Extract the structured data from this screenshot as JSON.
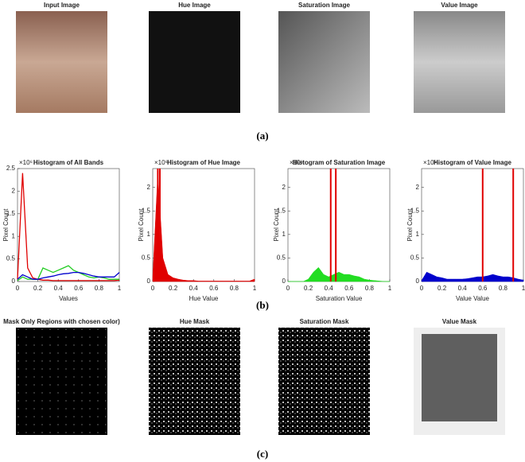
{
  "images_a": [
    "Input Image",
    "Hue Image",
    "Saturation Image",
    "Value Image"
  ],
  "images_c": [
    "Mask Only Regions with chosen color)",
    "Hue Mask",
    "Saturation Mask",
    "Value Mask"
  ],
  "panel_labels": [
    "(a)",
    "(b)",
    "(c)"
  ],
  "chart_data": [
    {
      "type": "line",
      "title": "Histogram of All Bands",
      "xlabel": "Values",
      "ylabel": "Pixel Count",
      "yexponent": "×10⁶",
      "x": [
        0,
        0.05,
        0.1,
        0.15,
        0.2,
        0.25,
        0.3,
        0.35,
        0.4,
        0.45,
        0.5,
        0.55,
        0.6,
        0.65,
        0.7,
        0.75,
        0.8,
        0.85,
        0.9,
        0.95,
        1
      ],
      "series": [
        {
          "name": "Red",
          "color": "#e00000",
          "values": [
            0.05,
            2.4,
            0.3,
            0.08,
            0.05,
            0.03,
            0.03,
            0.02,
            0.02,
            0.02,
            0.02,
            0.02,
            0.02,
            0.02,
            0.02,
            0.02,
            0.02,
            0.02,
            0.02,
            0.02,
            0.03
          ]
        },
        {
          "name": "Green",
          "color": "#22cc22",
          "values": [
            0.02,
            0.1,
            0.05,
            0.05,
            0.05,
            0.3,
            0.25,
            0.2,
            0.25,
            0.3,
            0.35,
            0.25,
            0.2,
            0.15,
            0.1,
            0.08,
            0.1,
            0.08,
            0.05,
            0.05,
            0.05
          ]
        },
        {
          "name": "Blue",
          "color": "#0000cc",
          "values": [
            0.05,
            0.15,
            0.1,
            0.05,
            0.05,
            0.08,
            0.1,
            0.12,
            0.15,
            0.17,
            0.18,
            0.2,
            0.2,
            0.18,
            0.15,
            0.12,
            0.1,
            0.1,
            0.1,
            0.1,
            0.2
          ]
        }
      ],
      "xlim": [
        0,
        1
      ],
      "ylim": [
        0,
        2.5
      ],
      "xticks": [
        0,
        0.2,
        0.4,
        0.6,
        0.8,
        1
      ],
      "yticks": [
        0,
        0.5,
        1,
        1.5,
        2,
        2.5
      ]
    },
    {
      "type": "area",
      "title": "Histogram of Hue Image",
      "xlabel": "Hue Value",
      "ylabel": "Pixel Count",
      "yexponent": "×10⁶",
      "x": [
        0,
        0.05,
        0.1,
        0.15,
        0.2,
        0.25,
        0.3,
        0.35,
        0.4,
        0.45,
        0.5,
        0.55,
        0.6,
        0.65,
        0.7,
        0.75,
        0.8,
        0.85,
        0.9,
        0.95,
        1
      ],
      "series": [
        {
          "name": "Hue",
          "color": "#e00000",
          "values": [
            0.1,
            2.3,
            0.5,
            0.15,
            0.08,
            0.05,
            0.03,
            0.02,
            0.02,
            0.01,
            0.01,
            0.01,
            0.01,
            0.01,
            0.01,
            0.01,
            0.01,
            0.01,
            0.01,
            0.01,
            0.05
          ]
        }
      ],
      "thresholds": [
        0.05,
        0.07
      ],
      "threshold_color": "#e00000",
      "xlim": [
        0,
        1
      ],
      "ylim": [
        0,
        2.4
      ],
      "xticks": [
        0,
        0.2,
        0.4,
        0.6,
        0.8,
        1
      ],
      "yticks": [
        0,
        0.5,
        1,
        1.5,
        2
      ]
    },
    {
      "type": "area",
      "title": "Histogram of Saturation Image",
      "xlabel": "Saturation Value",
      "ylabel": "Pixel Count",
      "yexponent": "×10⁶",
      "x": [
        0,
        0.05,
        0.1,
        0.15,
        0.2,
        0.25,
        0.3,
        0.35,
        0.4,
        0.45,
        0.5,
        0.55,
        0.6,
        0.65,
        0.7,
        0.75,
        0.8,
        0.85,
        0.9,
        0.95,
        1
      ],
      "series": [
        {
          "name": "Saturation",
          "color": "#22dd22",
          "values": [
            0,
            0,
            0,
            0,
            0.05,
            0.2,
            0.3,
            0.15,
            0.1,
            0.15,
            0.2,
            0.15,
            0.15,
            0.12,
            0.1,
            0.05,
            0.03,
            0.02,
            0.01,
            0,
            0
          ]
        }
      ],
      "thresholds": [
        0.42,
        0.47
      ],
      "threshold_color": "#e00000",
      "xlim": [
        0,
        1
      ],
      "ylim": [
        0,
        2.4
      ],
      "xticks": [
        0,
        0.2,
        0.4,
        0.6,
        0.8,
        1
      ],
      "yticks": [
        0,
        0.5,
        1,
        1.5,
        2
      ]
    },
    {
      "type": "area",
      "title": "Histogram of Value Image",
      "xlabel": "Value Value",
      "ylabel": "Pixel Count",
      "yexponent": "×10⁶",
      "x": [
        0,
        0.05,
        0.1,
        0.15,
        0.2,
        0.25,
        0.3,
        0.35,
        0.4,
        0.45,
        0.5,
        0.55,
        0.6,
        0.65,
        0.7,
        0.75,
        0.8,
        0.85,
        0.9,
        0.95,
        1
      ],
      "series": [
        {
          "name": "Value",
          "color": "#0000cc",
          "values": [
            0.02,
            0.2,
            0.15,
            0.1,
            0.08,
            0.05,
            0.05,
            0.05,
            0.05,
            0.06,
            0.08,
            0.1,
            0.1,
            0.12,
            0.15,
            0.12,
            0.1,
            0.1,
            0.08,
            0.05,
            0.03
          ]
        }
      ],
      "thresholds": [
        0.6,
        0.9
      ],
      "threshold_color": "#e00000",
      "xlim": [
        0,
        1
      ],
      "ylim": [
        0,
        2.4
      ],
      "xticks": [
        0,
        0.2,
        0.4,
        0.6,
        0.8,
        1
      ],
      "yticks": [
        0,
        0.5,
        1,
        1.5,
        2
      ]
    }
  ]
}
